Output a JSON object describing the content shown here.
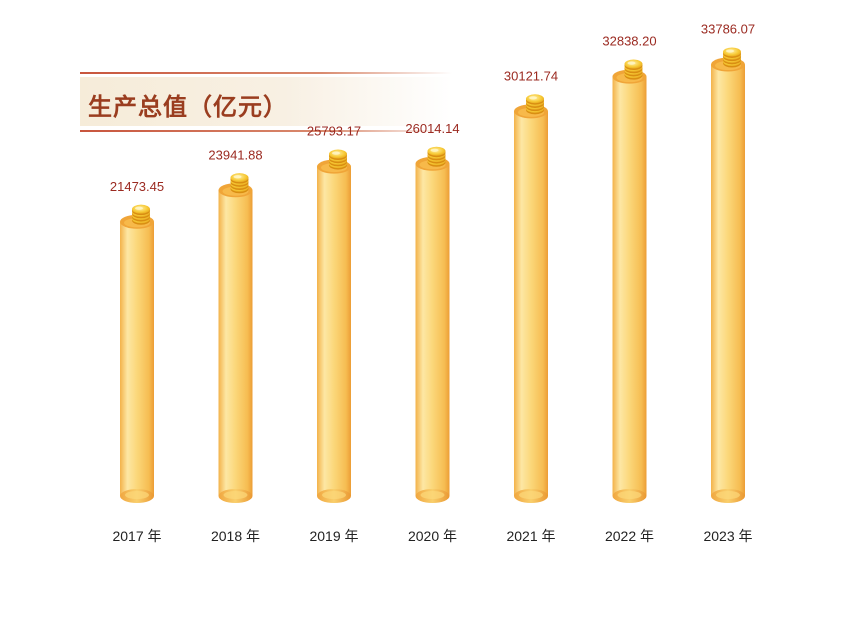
{
  "header": {
    "title": "生产总值（亿元）"
  },
  "colors": {
    "title": "#9a3d1f",
    "value_label": "#9b2a21",
    "bar_light": "#fde39a",
    "bar_dark": "#f2a73c",
    "coin": "#f5c02a"
  },
  "chart_data": {
    "type": "bar",
    "title": "生产总值（亿元）",
    "categories": [
      "2017 年",
      "2018 年",
      "2019 年",
      "2020 年",
      "2021 年",
      "2022 年",
      "2023 年"
    ],
    "values": [
      21473.45,
      23941.88,
      25793.17,
      26014.14,
      30121.74,
      32838.2,
      33786.07
    ],
    "value_labels": [
      "21473.45",
      "23941.88",
      "25793.17",
      "26014.14",
      "30121.74",
      "32838.20",
      "33786.07"
    ],
    "xlabel": "",
    "ylabel": "",
    "grid": false,
    "legend": "none"
  }
}
